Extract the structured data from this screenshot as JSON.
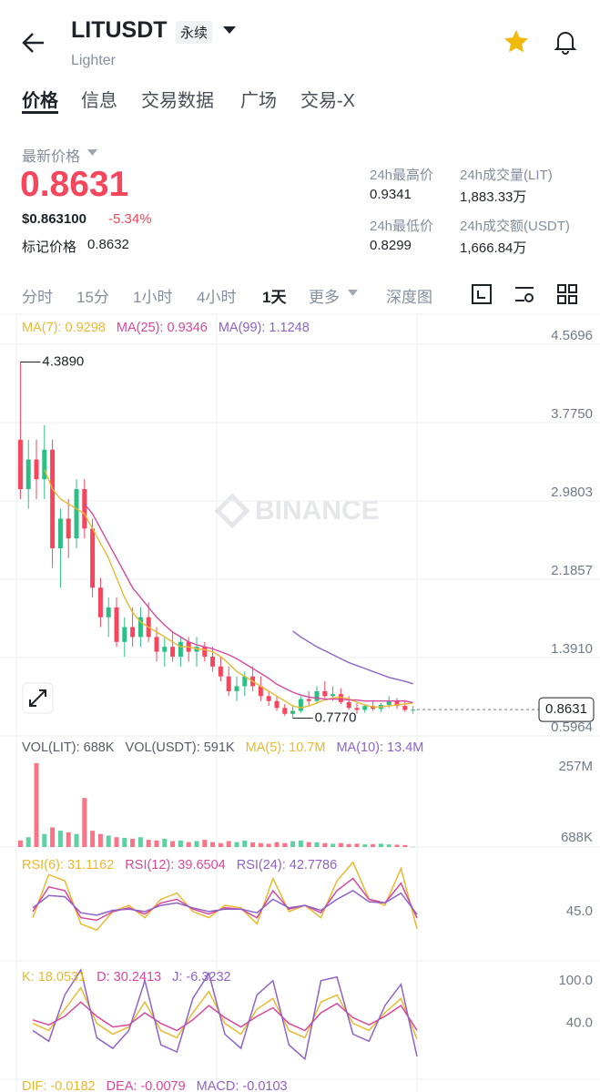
{
  "header": {
    "symbol": "LITUSDT",
    "contract": "永续",
    "subtitle": "Lighter"
  },
  "tabs": [
    "价格",
    "信息",
    "交易数据",
    "广场",
    "交易-X"
  ],
  "ticker": {
    "last_price_label": "最新价格",
    "last_price": "0.8631",
    "usd_price": "$0.863100",
    "change": "-5.34%",
    "mark_label": "标记价格",
    "mark_price": "0.8632",
    "stats": [
      {
        "label": "24h最高价",
        "value": "0.9341"
      },
      {
        "label": "24h成交量(LIT)",
        "value": "1,883.33万"
      },
      {
        "label": "24h最低价",
        "value": "0.8299"
      },
      {
        "label": "24h成交额(USDT)",
        "value": "1,666.84万"
      }
    ]
  },
  "intervals": [
    "分时",
    "15分",
    "1小时",
    "4小时",
    "1天"
  ],
  "more": "更多",
  "depth": "深度图",
  "chart_data": [
    {
      "type": "candlestick",
      "watermark": "BINANCE",
      "up_color": "#2ebd85",
      "down_color": "#f6465d",
      "grid": true,
      "ylim": [
        0.5964,
        4.828
      ],
      "yticks": [
        4.5696,
        {
          "value": 3.775,
          "label": "3.7750"
        },
        2.9803,
        2.1857,
        {
          "value": 1.391,
          "label": "1.3910"
        },
        0.5964
      ],
      "candles": [
        [
          3.6,
          4.389,
          3.0,
          3.1
        ],
        [
          3.1,
          3.6,
          2.9,
          3.4
        ],
        [
          3.4,
          3.6,
          3.0,
          3.2
        ],
        [
          3.2,
          3.75,
          3.0,
          3.5
        ],
        [
          3.5,
          3.6,
          2.3,
          2.5
        ],
        [
          2.5,
          2.9,
          2.1,
          2.8
        ],
        [
          2.8,
          3.0,
          2.4,
          2.6
        ],
        [
          2.6,
          3.2,
          2.5,
          3.1
        ],
        [
          3.1,
          3.2,
          2.6,
          2.7
        ],
        [
          2.7,
          2.8,
          2.0,
          2.1
        ],
        [
          2.1,
          2.2,
          1.7,
          1.8
        ],
        [
          1.8,
          2.0,
          1.6,
          1.9
        ],
        [
          1.9,
          2.0,
          1.5,
          1.55
        ],
        [
          1.55,
          1.8,
          1.4,
          1.7
        ],
        [
          1.7,
          1.9,
          1.5,
          1.6
        ],
        [
          1.6,
          1.9,
          1.5,
          1.8
        ],
        [
          1.8,
          1.95,
          1.55,
          1.6
        ],
        [
          1.6,
          1.7,
          1.35,
          1.45
        ],
        [
          1.45,
          1.6,
          1.3,
          1.5
        ],
        [
          1.5,
          1.65,
          1.35,
          1.4
        ],
        [
          1.4,
          1.6,
          1.3,
          1.55
        ],
        [
          1.55,
          1.6,
          1.35,
          1.45
        ],
        [
          1.45,
          1.6,
          1.3,
          1.5
        ],
        [
          1.5,
          1.55,
          1.35,
          1.4
        ],
        [
          1.4,
          1.5,
          1.25,
          1.3
        ],
        [
          1.3,
          1.4,
          1.15,
          1.2
        ],
        [
          1.2,
          1.3,
          1.0,
          1.05
        ],
        [
          1.05,
          1.2,
          0.95,
          1.1
        ],
        [
          1.1,
          1.25,
          1.0,
          1.2
        ],
        [
          1.2,
          1.3,
          1.05,
          1.1
        ],
        [
          1.1,
          1.2,
          0.95,
          1.0
        ],
        [
          1.0,
          1.05,
          0.9,
          0.95
        ],
        [
          0.95,
          1.0,
          0.85,
          0.88
        ],
        [
          0.88,
          0.92,
          0.8,
          0.82
        ],
        [
          0.82,
          0.9,
          0.777,
          0.85
        ],
        [
          0.85,
          1.0,
          0.83,
          0.97
        ],
        [
          0.97,
          1.05,
          0.9,
          0.95
        ],
        [
          0.95,
          1.1,
          0.92,
          1.05
        ],
        [
          1.05,
          1.15,
          0.98,
          1.0
        ],
        [
          1.0,
          1.1,
          0.95,
          1.02
        ],
        [
          1.02,
          1.08,
          0.92,
          0.94
        ],
        [
          0.94,
          1.0,
          0.86,
          0.88
        ],
        [
          0.88,
          0.93,
          0.82,
          0.86
        ],
        [
          0.86,
          0.92,
          0.83,
          0.9
        ],
        [
          0.9,
          0.95,
          0.85,
          0.87
        ],
        [
          0.87,
          0.93,
          0.84,
          0.91
        ],
        [
          0.91,
          1.0,
          0.88,
          0.95
        ],
        [
          0.95,
          0.98,
          0.87,
          0.9
        ],
        [
          0.9,
          0.96,
          0.84,
          0.86
        ],
        [
          0.86,
          0.9,
          0.82,
          0.8631
        ]
      ],
      "series": [
        {
          "name": "MA(7): 0.9298",
          "color": "#e8b931",
          "values": [
            null,
            null,
            null,
            3.3,
            3.1,
            3.0,
            2.95,
            2.9,
            2.85,
            2.7,
            2.55,
            2.4,
            2.2,
            2.0,
            1.85,
            1.75,
            1.7,
            1.65,
            1.6,
            1.55,
            1.5,
            1.5,
            1.48,
            1.47,
            1.45,
            1.4,
            1.33,
            1.25,
            1.2,
            1.15,
            1.1,
            1.05,
            1.0,
            0.95,
            0.9,
            0.88,
            0.9,
            0.93,
            0.96,
            0.98,
            0.99,
            0.97,
            0.94,
            0.91,
            0.89,
            0.89,
            0.9,
            0.91,
            0.92,
            0.9298
          ]
        },
        {
          "name": "MA(25): 0.9346",
          "color": "#d8479b",
          "values": [
            null,
            null,
            null,
            null,
            null,
            null,
            null,
            null,
            2.95,
            2.85,
            2.7,
            2.55,
            2.4,
            2.25,
            2.1,
            2.0,
            1.9,
            1.8,
            1.72,
            1.65,
            1.6,
            1.55,
            1.52,
            1.5,
            1.48,
            1.45,
            1.42,
            1.38,
            1.33,
            1.28,
            1.23,
            1.18,
            1.12,
            1.08,
            1.04,
            1.01,
            0.99,
            0.98,
            0.97,
            0.97,
            0.97,
            0.96,
            0.96,
            0.95,
            0.95,
            0.95,
            0.95,
            0.95,
            0.95,
            0.9346
          ]
        },
        {
          "name": "MA(99): 1.1248",
          "color": "#8e62c8",
          "values": [
            null,
            null,
            null,
            null,
            null,
            null,
            null,
            null,
            null,
            null,
            null,
            null,
            null,
            null,
            null,
            null,
            null,
            null,
            null,
            null,
            null,
            null,
            null,
            null,
            null,
            null,
            null,
            null,
            null,
            null,
            null,
            null,
            null,
            null,
            1.66,
            1.6,
            1.55,
            1.5,
            1.46,
            1.42,
            1.38,
            1.34,
            1.31,
            1.28,
            1.25,
            1.22,
            1.19,
            1.17,
            1.15,
            1.1248
          ]
        }
      ],
      "annotations": [
        {
          "index": 0,
          "value": 4.389,
          "label": "4.3890"
        },
        {
          "index": 34,
          "value": 0.777,
          "label": "0.7770"
        }
      ],
      "last_price": {
        "value": 0.8631,
        "label": "0.8631"
      }
    },
    {
      "type": "bar",
      "ylim": [
        0,
        279
      ],
      "yticks": [
        {
          "value": 257,
          "label": "257M"
        },
        {
          "value": 0.688,
          "label": "688K"
        }
      ],
      "legend": [
        {
          "name": "VOL(LIT): 688K",
          "color": "#555b66"
        },
        {
          "name": "VOL(USDT): 591K",
          "color": "#555b66"
        },
        {
          "name": "MA(5): 10.7M",
          "color": "#e8b931"
        },
        {
          "name": "MA(10): 13.4M",
          "color": "#8e62c8"
        }
      ],
      "values": [
        20,
        30,
        257,
        40,
        60,
        50,
        45,
        40,
        150,
        50,
        40,
        35,
        30,
        28,
        25,
        30,
        22,
        20,
        25,
        18,
        20,
        15,
        18,
        22,
        15,
        12,
        18,
        15,
        20,
        14,
        12,
        10,
        15,
        12,
        18,
        20,
        15,
        14,
        12,
        10,
        12,
        9,
        10,
        8,
        9,
        10,
        8,
        7,
        6,
        0.688
      ]
    },
    {
      "type": "line",
      "ylim": [
        5,
        90
      ],
      "yticks": [
        {
          "value": 45,
          "label": "45.0"
        }
      ],
      "series": [
        {
          "name": "RSI(6): 31.1162",
          "color": "#e8b931",
          "values": [
            40,
            75,
            70,
            35,
            30,
            45,
            50,
            40,
            55,
            60,
            45,
            40,
            50,
            48,
            35,
            72,
            45,
            50,
            40,
            70,
            85,
            55,
            50,
            80,
            31.1162
          ]
        },
        {
          "name": "RSI(12): 39.6504",
          "color": "#d8479b",
          "values": [
            45,
            65,
            62,
            40,
            38,
            45,
            48,
            43,
            52,
            55,
            47,
            43,
            48,
            47,
            40,
            62,
            47,
            50,
            44,
            62,
            72,
            55,
            52,
            68,
            39.6504
          ]
        },
        {
          "name": "RSI(24): 42.7786",
          "color": "#8e62c8",
          "values": [
            48,
            58,
            57,
            44,
            42,
            46,
            47,
            45,
            50,
            52,
            48,
            45,
            47,
            47,
            44,
            55,
            48,
            50,
            46,
            55,
            62,
            53,
            52,
            60,
            42.7786
          ]
        }
      ]
    },
    {
      "type": "line",
      "ylim": [
        -38.3,
        115
      ],
      "yticks": [
        {
          "value": 100,
          "label": "100.0"
        },
        {
          "value": 40,
          "label": "40.0"
        }
      ],
      "series": [
        {
          "name": "K: 18.0531",
          "color": "#e8b931",
          "values": [
            40,
            30,
            60,
            90,
            40,
            25,
            35,
            70,
            30,
            20,
            55,
            85,
            40,
            25,
            60,
            75,
            30,
            20,
            70,
            80,
            40,
            30,
            55,
            75,
            18.0531
          ]
        },
        {
          "name": "D: 30.2413",
          "color": "#d8479b",
          "values": [
            45,
            38,
            50,
            70,
            50,
            35,
            38,
            55,
            40,
            30,
            45,
            65,
            48,
            35,
            50,
            62,
            40,
            30,
            55,
            68,
            48,
            38,
            50,
            65,
            30.2413
          ]
        },
        {
          "name": "J: -6.3232",
          "color": "#8e62c8",
          "values": [
            30,
            15,
            80,
            115,
            20,
            5,
            30,
            100,
            10,
            0,
            75,
            110,
            25,
            5,
            80,
            100,
            10,
            -10,
            100,
            105,
            25,
            15,
            65,
            95,
            -6.3232
          ]
        }
      ]
    },
    {
      "type": "macd",
      "legend": [
        {
          "name": "DIF: -0.0182",
          "color": "#e8b931"
        },
        {
          "name": "DEA: -0.0079",
          "color": "#d8479b"
        },
        {
          "name": "MACD: -0.0103",
          "color": "#8e62c8"
        }
      ]
    }
  ]
}
